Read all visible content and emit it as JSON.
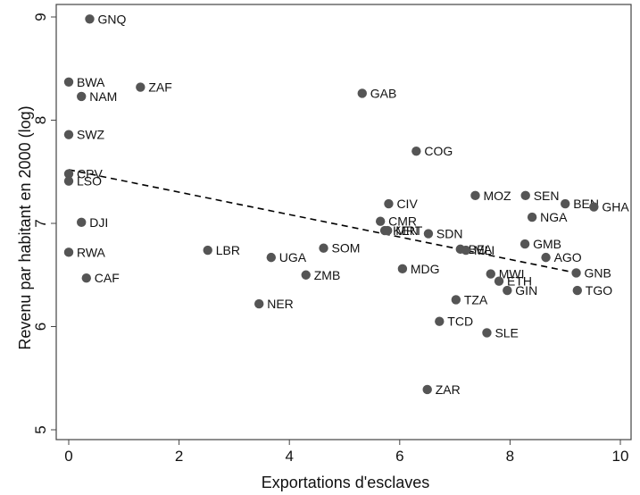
{
  "chart_data": {
    "type": "scatter",
    "xlabel": "Exportations d'esclaves",
    "ylabel": "Revenu par habitant en 2000 (log)",
    "xlim": [
      0,
      10
    ],
    "ylim": [
      5,
      9
    ],
    "x_ticks": [
      "0",
      "2",
      "4",
      "6",
      "8",
      "10"
    ],
    "y_ticks": [
      "5",
      "6",
      "7",
      "8",
      "9"
    ],
    "grid": false,
    "marker_color": "#555555",
    "line_color": "#000000",
    "fit_line": {
      "style": "dashed",
      "from": [
        0,
        7.52
      ],
      "to": [
        9.2,
        6.52
      ]
    },
    "points": [
      {
        "label": "GNQ",
        "x": 0.38,
        "y": 8.98
      },
      {
        "label": "BWA",
        "x": 0.0,
        "y": 8.37
      },
      {
        "label": "NAM",
        "x": 0.23,
        "y": 8.23
      },
      {
        "label": "ZAF",
        "x": 1.3,
        "y": 8.32
      },
      {
        "label": "GAB",
        "x": 5.32,
        "y": 8.26
      },
      {
        "label": "SWZ",
        "x": 0.0,
        "y": 7.86
      },
      {
        "label": "COG",
        "x": 6.3,
        "y": 7.7
      },
      {
        "label": "CPV",
        "x": 0.0,
        "y": 7.48
      },
      {
        "label": "LSO",
        "x": 0.0,
        "y": 7.41
      },
      {
        "label": "CIV",
        "x": 5.8,
        "y": 7.19
      },
      {
        "label": "MOZ",
        "x": 7.37,
        "y": 7.27
      },
      {
        "label": "SEN",
        "x": 8.28,
        "y": 7.27
      },
      {
        "label": "BEN",
        "x": 9.0,
        "y": 7.19
      },
      {
        "label": "GHA",
        "x": 9.52,
        "y": 7.16
      },
      {
        "label": "NGA",
        "x": 8.4,
        "y": 7.06
      },
      {
        "label": "DJI",
        "x": 0.23,
        "y": 7.01
      },
      {
        "label": "CMR",
        "x": 5.65,
        "y": 7.02
      },
      {
        "label": "KEN",
        "x": 5.73,
        "y": 6.93
      },
      {
        "label": "MRT",
        "x": 5.78,
        "y": 6.93
      },
      {
        "label": "SDN",
        "x": 6.52,
        "y": 6.9
      },
      {
        "label": "BFA",
        "x": 7.1,
        "y": 6.75
      },
      {
        "label": "MLI",
        "x": 7.2,
        "y": 6.74
      },
      {
        "label": "RWA",
        "x": 0.0,
        "y": 6.72
      },
      {
        "label": "LBR",
        "x": 2.52,
        "y": 6.74
      },
      {
        "label": "SOM",
        "x": 4.62,
        "y": 6.76
      },
      {
        "label": "UGA",
        "x": 3.67,
        "y": 6.67
      },
      {
        "label": "GMB",
        "x": 8.27,
        "y": 6.8
      },
      {
        "label": "AGO",
        "x": 8.65,
        "y": 6.67
      },
      {
        "label": "MDG",
        "x": 6.05,
        "y": 6.56
      },
      {
        "label": "ZMB",
        "x": 4.3,
        "y": 6.5
      },
      {
        "label": "CAF",
        "x": 0.32,
        "y": 6.47
      },
      {
        "label": "MWI",
        "x": 7.65,
        "y": 6.51
      },
      {
        "label": "GNB",
        "x": 9.2,
        "y": 6.52
      },
      {
        "label": "ETH",
        "x": 7.8,
        "y": 6.44
      },
      {
        "label": "GIN",
        "x": 7.95,
        "y": 6.35
      },
      {
        "label": "TGO",
        "x": 9.22,
        "y": 6.35
      },
      {
        "label": "TZA",
        "x": 7.02,
        "y": 6.26
      },
      {
        "label": "NER",
        "x": 3.45,
        "y": 6.22
      },
      {
        "label": "TCD",
        "x": 6.72,
        "y": 6.05
      },
      {
        "label": "SLE",
        "x": 7.58,
        "y": 5.94
      },
      {
        "label": "ZAR",
        "x": 6.5,
        "y": 5.39
      }
    ]
  }
}
